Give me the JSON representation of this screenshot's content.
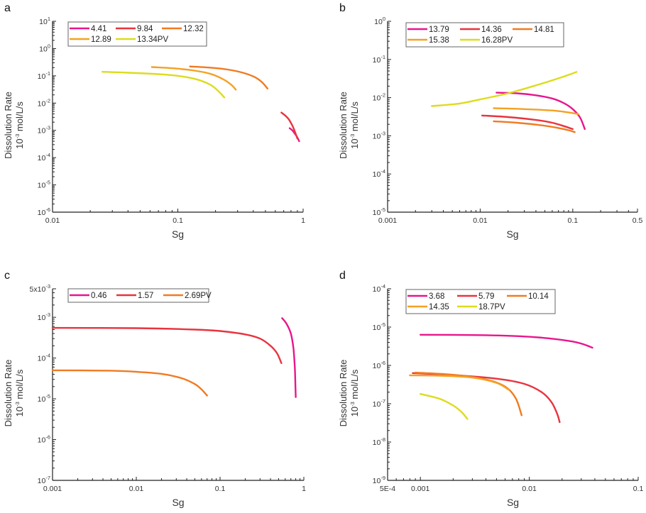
{
  "colors": {
    "magenta": "#e8168c",
    "red": "#e8343e",
    "orange": "#f07b22",
    "amber": "#f4a124",
    "yellow": "#dcdc1e"
  },
  "chart_data": [
    {
      "panel": "a",
      "type": "line",
      "xscale": "log",
      "yscale": "log",
      "xlabel": "Sg",
      "ylabel_line1": "Dissolution Rate",
      "ylabel_line2": "10^-3 mol/L/s",
      "xlim": [
        0.01,
        1
      ],
      "ylim": [
        1e-06,
        10
      ],
      "xticks": [
        {
          "v": 0.01,
          "label": "0.01"
        },
        {
          "v": 0.1,
          "label": "0.1"
        },
        {
          "v": 1,
          "label": "1"
        }
      ],
      "yticks": [
        {
          "v": 10,
          "base": "10",
          "exp": "1"
        },
        {
          "v": 1,
          "base": "10",
          "exp": "0"
        },
        {
          "v": 0.1,
          "base": "10",
          "exp": "-1"
        },
        {
          "v": 0.01,
          "base": "10",
          "exp": "-2"
        },
        {
          "v": 0.001,
          "base": "10",
          "exp": "-3"
        },
        {
          "v": 0.0001,
          "base": "10",
          "exp": "-4"
        },
        {
          "v": 1e-05,
          "base": "10",
          "exp": "-5"
        },
        {
          "v": 1e-06,
          "base": "10",
          "exp": "-6"
        }
      ],
      "legend": {
        "columns": 3,
        "location": "top-left"
      },
      "series": [
        {
          "name": "4.41",
          "color": "magenta",
          "x": [
            0.78,
            0.82,
            0.86,
            0.9,
            0.93
          ],
          "y": [
            0.0012,
            0.001,
            0.00075,
            0.00055,
            0.0004
          ]
        },
        {
          "name": "9.84",
          "color": "red",
          "x": [
            0.67,
            0.72,
            0.77,
            0.82,
            0.86,
            0.9
          ],
          "y": [
            0.0045,
            0.0035,
            0.0025,
            0.0015,
            0.0009,
            0.0005
          ]
        },
        {
          "name": "12.32",
          "color": "orange",
          "x": [
            0.125,
            0.18,
            0.25,
            0.33,
            0.41,
            0.47,
            0.52
          ],
          "y": [
            0.22,
            0.2,
            0.17,
            0.13,
            0.09,
            0.058,
            0.034
          ]
        },
        {
          "name": "12.89",
          "color": "amber",
          "x": [
            0.062,
            0.09,
            0.13,
            0.18,
            0.23,
            0.27,
            0.29
          ],
          "y": [
            0.21,
            0.19,
            0.16,
            0.12,
            0.075,
            0.045,
            0.031
          ]
        },
        {
          "name": "13.34PV",
          "color": "yellow",
          "x": [
            0.025,
            0.04,
            0.07,
            0.1,
            0.14,
            0.18,
            0.21,
            0.235
          ],
          "y": [
            0.14,
            0.13,
            0.115,
            0.1,
            0.075,
            0.048,
            0.028,
            0.016
          ]
        }
      ]
    },
    {
      "panel": "b",
      "type": "line",
      "xscale": "log",
      "yscale": "log",
      "xlabel": "Sg",
      "ylabel_line1": "Dissolution Rate",
      "ylabel_line2": "10^-3 mol/L/s",
      "xlim": [
        0.001,
        0.5
      ],
      "ylim": [
        1e-05,
        1
      ],
      "xticks": [
        {
          "v": 0.001,
          "label": "0.001"
        },
        {
          "v": 0.01,
          "label": "0.01"
        },
        {
          "v": 0.1,
          "label": "0.1"
        },
        {
          "v": 0.5,
          "label": "0.5"
        }
      ],
      "yticks": [
        {
          "v": 1,
          "base": "10",
          "exp": "0"
        },
        {
          "v": 0.1,
          "base": "10",
          "exp": "-1"
        },
        {
          "v": 0.01,
          "base": "10",
          "exp": "-2"
        },
        {
          "v": 0.001,
          "base": "10",
          "exp": "-3"
        },
        {
          "v": 0.0001,
          "base": "10",
          "exp": "-4"
        },
        {
          "v": 1e-05,
          "base": "10",
          "exp": "-5"
        }
      ],
      "legend": {
        "columns": 3,
        "location": "top-left"
      },
      "series": [
        {
          "name": "13.79",
          "color": "magenta",
          "x": [
            0.015,
            0.025,
            0.04,
            0.06,
            0.08,
            0.1,
            0.12,
            0.135
          ],
          "y": [
            0.0135,
            0.013,
            0.0115,
            0.0095,
            0.0072,
            0.005,
            0.003,
            0.0015
          ]
        },
        {
          "name": "14.36",
          "color": "red",
          "x": [
            0.0105,
            0.02,
            0.04,
            0.06,
            0.08,
            0.1
          ],
          "y": [
            0.0034,
            0.0031,
            0.0026,
            0.0022,
            0.0018,
            0.0015
          ]
        },
        {
          "name": "14.81",
          "color": "orange",
          "x": [
            0.014,
            0.025,
            0.045,
            0.07,
            0.09,
            0.105
          ],
          "y": [
            0.0024,
            0.0022,
            0.0019,
            0.0016,
            0.0014,
            0.00125
          ]
        },
        {
          "name": "15.38",
          "color": "amber",
          "x": [
            0.014,
            0.03,
            0.06,
            0.09,
            0.115
          ],
          "y": [
            0.0053,
            0.005,
            0.0046,
            0.0041,
            0.0037
          ]
        },
        {
          "name": "16.28PV",
          "color": "yellow",
          "x": [
            0.003,
            0.006,
            0.01,
            0.02,
            0.04,
            0.07,
            0.11
          ],
          "y": [
            0.006,
            0.007,
            0.009,
            0.013,
            0.021,
            0.032,
            0.047
          ]
        }
      ]
    },
    {
      "panel": "c",
      "type": "line",
      "xscale": "log",
      "yscale": "log",
      "xlabel": "Sg",
      "ylabel_line1": "Dissolution Rate",
      "ylabel_line2": "10^-3 mol/L/s",
      "xlim": [
        0.001,
        1
      ],
      "ylim": [
        1e-07,
        0.005
      ],
      "xticks": [
        {
          "v": 0.001,
          "label": "0.001"
        },
        {
          "v": 0.01,
          "label": "0.01"
        },
        {
          "v": 0.1,
          "label": "0.1"
        },
        {
          "v": 1,
          "label": "1"
        }
      ],
      "yticks": [
        {
          "v": 0.005,
          "base": "5x10",
          "exp": "-3"
        },
        {
          "v": 0.001,
          "base": "10",
          "exp": "-3"
        },
        {
          "v": 0.0001,
          "base": "10",
          "exp": "-4"
        },
        {
          "v": 1e-05,
          "base": "10",
          "exp": "-5"
        },
        {
          "v": 1e-06,
          "base": "10",
          "exp": "-6"
        },
        {
          "v": 1e-07,
          "base": "10",
          "exp": "-7"
        }
      ],
      "legend": {
        "columns": 3,
        "location": "top-left"
      },
      "series": [
        {
          "name": "0.46",
          "color": "magenta",
          "x": [
            0.55,
            0.62,
            0.7,
            0.75,
            0.78,
            0.79,
            0.8
          ],
          "y": [
            0.00095,
            0.0007,
            0.0004,
            0.00018,
            6e-05,
            3e-05,
            1.1e-05
          ]
        },
        {
          "name": "1.57",
          "color": "red",
          "x": [
            0.001,
            0.01,
            0.05,
            0.1,
            0.2,
            0.3,
            0.4,
            0.48,
            0.54
          ],
          "y": [
            0.00055,
            0.00054,
            0.0005,
            0.00046,
            0.00038,
            0.0003,
            0.0002,
            0.00013,
            7.5e-05
          ]
        },
        {
          "name": "2.69PV",
          "color": "orange",
          "x": [
            0.001,
            0.005,
            0.01,
            0.02,
            0.035,
            0.05,
            0.06,
            0.07
          ],
          "y": [
            5e-05,
            4.9e-05,
            4.6e-05,
            4.1e-05,
            3.2e-05,
            2.3e-05,
            1.7e-05,
            1.2e-05
          ]
        }
      ]
    },
    {
      "panel": "d",
      "type": "line",
      "xscale": "log",
      "yscale": "log",
      "xlabel": "Sg",
      "ylabel_line1": "Dissolution Rate",
      "ylabel_line2": "10^-3 mol/L/s",
      "xlim": [
        0.0005,
        0.1
      ],
      "ylim": [
        1e-09,
        0.0001
      ],
      "xticks": [
        {
          "v": 0.0005,
          "label": "5E-4"
        },
        {
          "v": 0.001,
          "label": "0.001"
        },
        {
          "v": 0.01,
          "label": "0.01"
        },
        {
          "v": 0.1,
          "label": "0.1"
        }
      ],
      "yticks": [
        {
          "v": 0.0001,
          "base": "10",
          "exp": "-4"
        },
        {
          "v": 1e-05,
          "base": "10",
          "exp": "-5"
        },
        {
          "v": 1e-06,
          "base": "10",
          "exp": "-6"
        },
        {
          "v": 1e-07,
          "base": "10",
          "exp": "-7"
        },
        {
          "v": 1e-08,
          "base": "10",
          "exp": "-8"
        },
        {
          "v": 1e-09,
          "base": "10",
          "exp": "-9"
        }
      ],
      "legend": {
        "columns": 3,
        "location": "top-left"
      },
      "series": [
        {
          "name": "3.68",
          "color": "magenta",
          "x": [
            0.001,
            0.003,
            0.008,
            0.015,
            0.025,
            0.032,
            0.038
          ],
          "y": [
            6.3e-06,
            6.2e-06,
            5.8e-06,
            5.1e-06,
            4.2e-06,
            3.5e-06,
            2.9e-06
          ]
        },
        {
          "name": "5.79",
          "color": "red",
          "x": [
            0.00085,
            0.002,
            0.005,
            0.009,
            0.013,
            0.016,
            0.018,
            0.019
          ],
          "y": [
            6.3e-07,
            5.6e-07,
            4.5e-07,
            3.3e-07,
            2e-07,
            1.1e-07,
            5.5e-08,
            3.3e-08
          ]
        },
        {
          "name": "10.14",
          "color": "orange",
          "x": [
            0.0009,
            0.002,
            0.004,
            0.006,
            0.0075,
            0.0085
          ],
          "y": [
            6.5e-07,
            5.7e-07,
            4.3e-07,
            2.8e-07,
            1.4e-07,
            5e-08
          ]
        },
        {
          "name": "14.35",
          "color": "amber",
          "x": [
            0.0008,
            0.0015,
            0.003,
            0.005,
            0.0065
          ],
          "y": [
            5.5e-07,
            5.4e-07,
            4.8e-07,
            3.5e-07,
            2.3e-07
          ]
        },
        {
          "name": "18.7PV",
          "color": "yellow",
          "x": [
            0.001,
            0.0015,
            0.002,
            0.0024,
            0.0027
          ],
          "y": [
            1.8e-07,
            1.35e-07,
            9e-08,
            6e-08,
            4e-08
          ]
        }
      ]
    }
  ]
}
